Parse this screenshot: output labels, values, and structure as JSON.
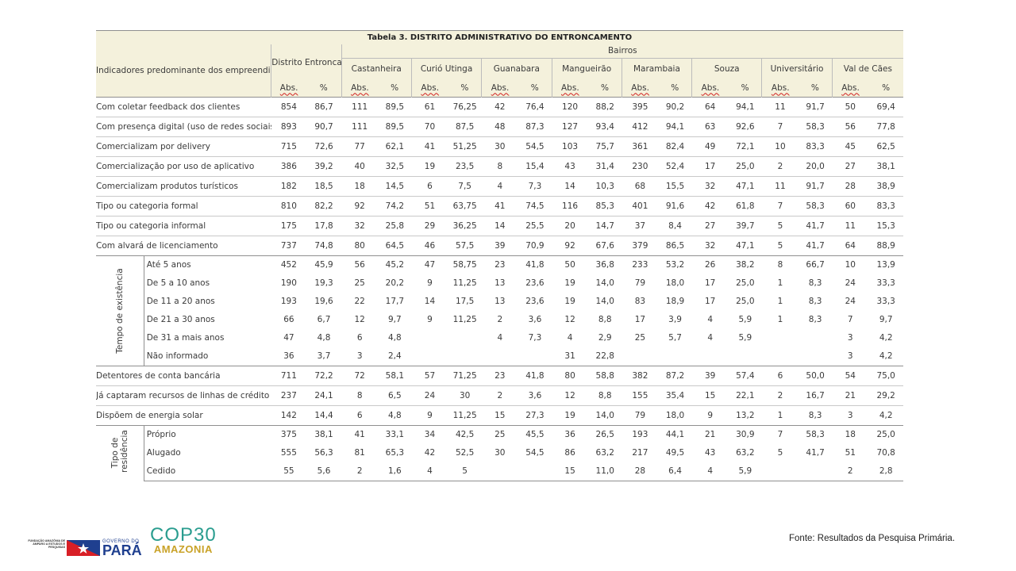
{
  "table": {
    "title": "Tabela 3. DISTRITO ADMINISTRATIVO DO ENTRONCAMENTO",
    "indicator_header": "Indicadores predominante dos empreendimentos",
    "district_header": "Distrito Entroncamento",
    "bairros_header": "Bairros",
    "neighborhoods": [
      "Castanheira",
      "Curió Utinga",
      "Guanabara",
      "Mangueirão",
      "Marambaia",
      "Souza",
      "Universitário",
      "Val de Cães"
    ],
    "abs_label": "Abs.",
    "pct_label": "%",
    "rows": [
      {
        "label": "Com coletar feedback dos clientes",
        "values": [
          "854",
          "86,7",
          "111",
          "89,5",
          "61",
          "76,25",
          "42",
          "76,4",
          "120",
          "88,2",
          "395",
          "90,2",
          "64",
          "94,1",
          "11",
          "91,7",
          "50",
          "69,4"
        ]
      },
      {
        "label": "Com presença digital (uso de redes sociais)",
        "values": [
          "893",
          "90,7",
          "111",
          "89,5",
          "70",
          "87,5",
          "48",
          "87,3",
          "127",
          "93,4",
          "412",
          "94,1",
          "63",
          "92,6",
          "7",
          "58,3",
          "56",
          "77,8"
        ]
      },
      {
        "label": "Comercializam por delivery",
        "values": [
          "715",
          "72,6",
          "77",
          "62,1",
          "41",
          "51,25",
          "30",
          "54,5",
          "103",
          "75,7",
          "361",
          "82,4",
          "49",
          "72,1",
          "10",
          "83,3",
          "45",
          "62,5"
        ]
      },
      {
        "label": "Comercialização por uso de aplicativo",
        "values": [
          "386",
          "39,2",
          "40",
          "32,5",
          "19",
          "23,5",
          "8",
          "15,4",
          "43",
          "31,4",
          "230",
          "52,4",
          "17",
          "25,0",
          "2",
          "20,0",
          "27",
          "38,1"
        ]
      },
      {
        "label": "Comercializam produtos turísticos",
        "values": [
          "182",
          "18,5",
          "18",
          "14,5",
          "6",
          "7,5",
          "4",
          "7,3",
          "14",
          "10,3",
          "68",
          "15,5",
          "32",
          "47,1",
          "11",
          "91,7",
          "28",
          "38,9"
        ]
      },
      {
        "label": "Tipo ou categoria formal",
        "values": [
          "810",
          "82,2",
          "92",
          "74,2",
          "51",
          "63,75",
          "41",
          "74,5",
          "116",
          "85,3",
          "401",
          "91,6",
          "42",
          "61,8",
          "7",
          "58,3",
          "60",
          "83,3"
        ]
      },
      {
        "label": "Tipo ou categoria informal",
        "values": [
          "175",
          "17,8",
          "32",
          "25,8",
          "29",
          "36,25",
          "14",
          "25,5",
          "20",
          "14,7",
          "37",
          "8,4",
          "27",
          "39,7",
          "5",
          "41,7",
          "11",
          "15,3"
        ]
      },
      {
        "label": "Com alvará de licenciamento",
        "values": [
          "737",
          "74,8",
          "80",
          "64,5",
          "46",
          "57,5",
          "39",
          "70,9",
          "92",
          "67,6",
          "379",
          "86,5",
          "32",
          "47,1",
          "5",
          "41,7",
          "64",
          "88,9"
        ]
      }
    ],
    "existence_group": {
      "label": "Tempo de existência",
      "rows": [
        {
          "label": "Até 5 anos",
          "values": [
            "452",
            "45,9",
            "56",
            "45,2",
            "47",
            "58,75",
            "23",
            "41,8",
            "50",
            "36,8",
            "233",
            "53,2",
            "26",
            "38,2",
            "8",
            "66,7",
            "10",
            "13,9"
          ]
        },
        {
          "label": "De 5 a 10 anos",
          "values": [
            "190",
            "19,3",
            "25",
            "20,2",
            "9",
            "11,25",
            "13",
            "23,6",
            "19",
            "14,0",
            "79",
            "18,0",
            "17",
            "25,0",
            "1",
            "8,3",
            "24",
            "33,3"
          ]
        },
        {
          "label": "De 11 a 20 anos",
          "values": [
            "193",
            "19,6",
            "22",
            "17,7",
            "14",
            "17,5",
            "13",
            "23,6",
            "19",
            "14,0",
            "83",
            "18,9",
            "17",
            "25,0",
            "1",
            "8,3",
            "24",
            "33,3"
          ]
        },
        {
          "label": "De 21 a 30 anos",
          "values": [
            "66",
            "6,7",
            "12",
            "9,7",
            "9",
            "11,25",
            "2",
            "3,6",
            "12",
            "8,8",
            "17",
            "3,9",
            "4",
            "5,9",
            "1",
            "8,3",
            "7",
            "9,7"
          ]
        },
        {
          "label": "De 31 a mais anos",
          "values": [
            "47",
            "4,8",
            "6",
            "4,8",
            "",
            "",
            "4",
            "7,3",
            "4",
            "2,9",
            "25",
            "5,7",
            "4",
            "5,9",
            "",
            "",
            "3",
            "4,2"
          ]
        },
        {
          "label": "Não informado",
          "values": [
            "36",
            "3,7",
            "3",
            "2,4",
            "",
            "",
            "",
            "",
            "31",
            "22,8",
            "",
            "",
            "",
            "",
            "",
            "",
            "3",
            "4,2"
          ]
        }
      ]
    },
    "rows2": [
      {
        "label": "Detentores de conta bancária",
        "values": [
          "711",
          "72,2",
          "72",
          "58,1",
          "57",
          "71,25",
          "23",
          "41,8",
          "80",
          "58,8",
          "382",
          "87,2",
          "39",
          "57,4",
          "6",
          "50,0",
          "54",
          "75,0"
        ]
      },
      {
        "label": "Já captaram recursos de linhas de crédito",
        "values": [
          "237",
          "24,1",
          "8",
          "6,5",
          "24",
          "30",
          "2",
          "3,6",
          "12",
          "8,8",
          "155",
          "35,4",
          "15",
          "22,1",
          "2",
          "16,7",
          "21",
          "29,2"
        ]
      },
      {
        "label": "Dispõem de energia solar",
        "values": [
          "142",
          "14,4",
          "6",
          "4,8",
          "9",
          "11,25",
          "15",
          "27,3",
          "19",
          "14,0",
          "79",
          "18,0",
          "9",
          "13,2",
          "1",
          "8,3",
          "3",
          "4,2"
        ]
      }
    ],
    "residence_group": {
      "label": "Tipo de residência",
      "rows": [
        {
          "label": "Próprio",
          "values": [
            "375",
            "38,1",
            "41",
            "33,1",
            "34",
            "42,5",
            "25",
            "45,5",
            "36",
            "26,5",
            "193",
            "44,1",
            "21",
            "30,9",
            "7",
            "58,3",
            "18",
            "25,0"
          ]
        },
        {
          "label": "Alugado",
          "values": [
            "555",
            "56,3",
            "81",
            "65,3",
            "42",
            "52,5",
            "30",
            "54,5",
            "86",
            "63,2",
            "217",
            "49,5",
            "43",
            "63,2",
            "5",
            "41,7",
            "51",
            "70,8"
          ]
        },
        {
          "label": "Cedido",
          "values": [
            "55",
            "5,6",
            "2",
            "1,6",
            "4",
            "5",
            "",
            "",
            "15",
            "11,0",
            "28",
            "6,4",
            "4",
            "5,9",
            "",
            "",
            "2",
            "2,8"
          ]
        }
      ]
    }
  },
  "source": "Fonte: Resultados da Pesquisa Primária.",
  "logos": {
    "fapespa": "FUNDAÇÃO AMAZÔNIA DE AMPARO A ESTUDOS E PESQUISAS",
    "governo": "GOVERNO DO",
    "para": "PARÁ",
    "cop_top": "COP30",
    "cop_bottom": "AMAZONIA"
  },
  "colors": {
    "header_bg": "#f4f1dc",
    "para_red": "#d81f26",
    "para_blue": "#1f3f8f",
    "cop_teal": "#2a9d8f",
    "cop_gold": "#c9a227"
  }
}
